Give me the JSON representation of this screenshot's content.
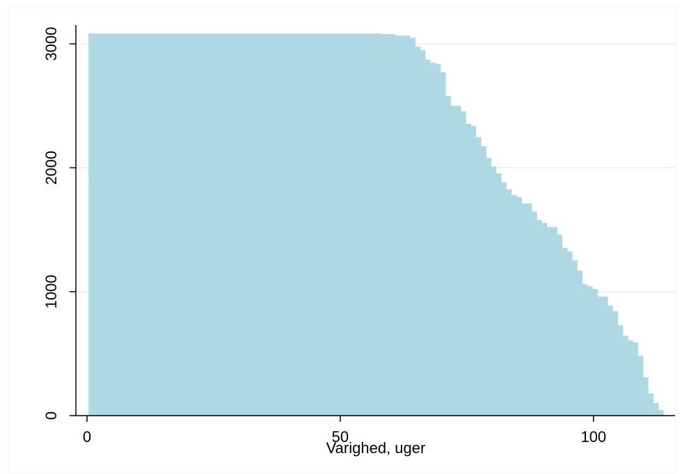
{
  "chart_data": {
    "type": "histogram",
    "x_label": "Varighed, uger",
    "color": "#add8e4",
    "grid": true,
    "bins": [
      0.3,
      57.8,
      60.8,
      63.8,
      64.8,
      65.8,
      66.8,
      67.8,
      68.8,
      69.8,
      70.8,
      71.8,
      73.8,
      74.8,
      75.8,
      76.8,
      77.8,
      78.8,
      79.8,
      80.8,
      81.8,
      82.8,
      83.8,
      84.8,
      85.8,
      87.8,
      88.8,
      89.8,
      90.8,
      92.8,
      93.8,
      94.8,
      95.8,
      96.8,
      97.8,
      98.8,
      99.8,
      100.8,
      102.8,
      103.8,
      104.8,
      105.8,
      106.8,
      107.8,
      108.8,
      109.8,
      110.8,
      111.8,
      112.8,
      113.8
    ],
    "values": [
      3084,
      3079,
      3067,
      3050,
      2978,
      2949,
      2871,
      2848,
      2837,
      2770,
      2579,
      2500,
      2455,
      2354,
      2337,
      2247,
      2174,
      2079,
      2011,
      1955,
      1882,
      1826,
      1781,
      1764,
      1713,
      1646,
      1579,
      1556,
      1522,
      1461,
      1354,
      1326,
      1253,
      1169,
      1062,
      1045,
      1022,
      961,
      888,
      843,
      730,
      646,
      607,
      590,
      483,
      309,
      180,
      101,
      45
    ],
    "xlim": [
      -2.2,
      116.1
    ],
    "xticks": [
      0,
      50,
      100
    ],
    "ylim": [
      0,
      3152
    ],
    "yticks": [
      0,
      1000,
      2000,
      3000
    ]
  }
}
